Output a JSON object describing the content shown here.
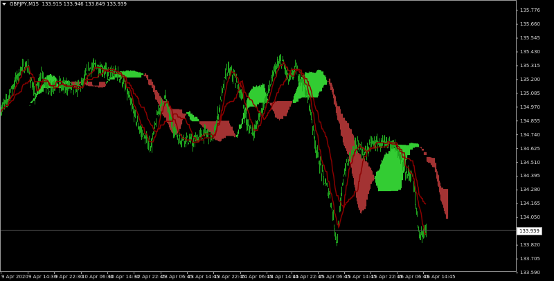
{
  "header": {
    "symbol": "GBPJPY,M15",
    "ohlc": "133.915 133.946 133.849 133.939"
  },
  "colors": {
    "price": "#1fa31f",
    "cloud_bull": "#33cc33",
    "cloud_bear": "#a33333",
    "lines": "#8b0000",
    "current_line": "#5a5a5a",
    "axis": "#9a9a9a"
  },
  "chart_data": {
    "type": "line",
    "symbol": "GBPJPY",
    "timeframe": "M15",
    "indicator": "Ichimoku Kinko Hyo",
    "current_price": 133.939,
    "ylim": [
      133.59,
      135.776
    ],
    "y_ticks": [
      "135.776",
      "135.660",
      "135.545",
      "135.430",
      "135.315",
      "135.200",
      "135.085",
      "134.970",
      "134.855",
      "134.740",
      "134.625",
      "134.510",
      "134.395",
      "134.280",
      "134.165",
      "134.050",
      "133.820",
      "133.705",
      "133.590"
    ],
    "x_ticks": [
      "9 Apr 2020",
      "9 Apr 14:30",
      "9 Apr 22:30",
      "10 Apr 06:30",
      "10 Apr 14:30",
      "12 Apr 22:45",
      "13 Apr 06:45",
      "13 Apr 14:45",
      "13 Apr 22:45",
      "14 Apr 06:45",
      "14 Apr 14:45",
      "14 Apr 22:45",
      "15 Apr 06:45",
      "15 Apr 14:45",
      "15 Apr 22:45",
      "16 Apr 06:45",
      "16 Apr 14:45"
    ],
    "close": [
      134.94,
      135.026,
      135.17,
      135.286,
      135.315,
      135.055,
      135.257,
      135.113,
      135.17,
      135.142,
      135.142,
      135.113,
      135.17,
      135.286,
      135.315,
      135.286,
      135.24,
      135.257,
      135.17,
      134.997,
      134.824,
      134.709,
      134.651,
      134.94,
      135.055,
      134.824,
      134.709,
      134.709,
      134.669,
      134.726,
      134.749,
      134.709,
      134.997,
      135.286,
      135.228,
      135.096,
      134.807,
      134.767,
      134.94,
      135.096,
      135.286,
      135.361,
      135.188,
      135.286,
      135.188,
      134.997,
      134.611,
      134.38,
      134.23,
      133.844,
      134.421,
      134.576,
      134.669,
      134.576,
      134.669,
      134.669,
      134.651,
      134.692,
      134.576,
      134.421,
      134.403,
      133.902,
      133.939
    ]
  }
}
